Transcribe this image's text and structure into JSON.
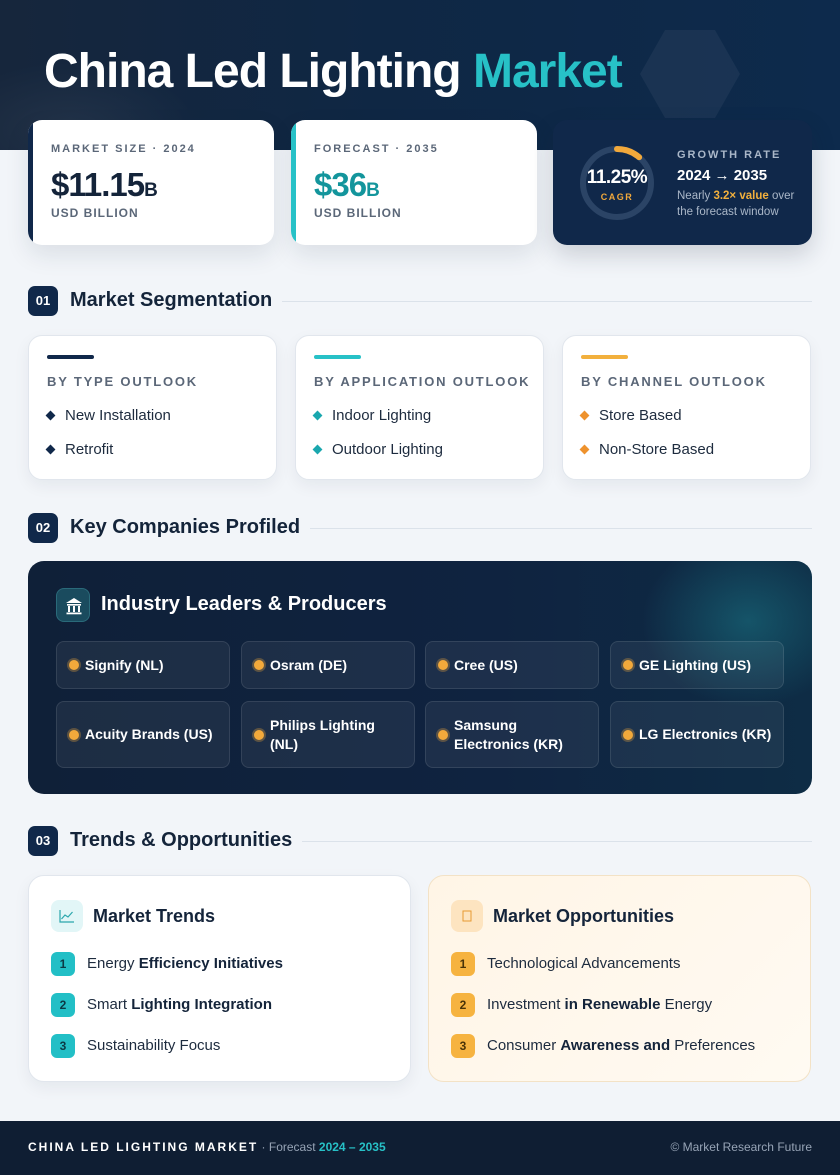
{
  "hero": {
    "title_main": "China Led Lighting",
    "title_accent": "Market"
  },
  "stats": {
    "market_size": {
      "label": "MARKET SIZE · 2024",
      "value": "$11.15",
      "unit": "B",
      "sub": "USD BILLION",
      "accent_color": "#10284a"
    },
    "forecast": {
      "label": "FORECAST · 2035",
      "value": "$36",
      "unit": "B",
      "sub": "USD BILLION",
      "accent_color": "#27c1c7",
      "value_color": "#13959c"
    },
    "growth": {
      "ring_value": "11.25%",
      "ring_caption": "CAGR",
      "ring_fill_fraction": 0.1125,
      "label": "GROWTH RATE",
      "range": "2024 → 2035",
      "note_pre": "Nearly",
      "note_highlight": "3.2× value",
      "note_post": "over the forecast window"
    }
  },
  "sections": {
    "s1": {
      "num": "01",
      "title": "Market Segmentation"
    },
    "s2": {
      "num": "02",
      "title": "Key Companies Profiled"
    },
    "s3": {
      "num": "03",
      "title": "Trends & Opportunities"
    }
  },
  "segmentation": [
    {
      "heading": "BY TYPE OUTLOOK",
      "color": "#10284a",
      "items": [
        "New Installation",
        "Retrofit"
      ]
    },
    {
      "heading": "BY APPLICATION OUTLOOK",
      "color": "#27c1c7",
      "items": [
        "Indoor Lighting",
        "Outdoor Lighting"
      ]
    },
    {
      "heading": "BY CHANNEL OUTLOOK",
      "color": "#f2b03d",
      "items": [
        "Store Based",
        "Non-Store Based"
      ]
    }
  ],
  "companies": {
    "title": "Industry Leaders & Producers",
    "icon": "institution-icon",
    "list": [
      "Signify (NL)",
      "Osram (DE)",
      "Cree (US)",
      "GE Lighting (US)",
      "Acuity Brands (US)",
      "Philips Lighting (NL)",
      "Samsung Electronics (KR)",
      "LG Electronics (KR)"
    ]
  },
  "trends": {
    "title": "Market Trends",
    "icon": "line-chart-icon",
    "items": [
      {
        "num": "1",
        "pre": "Energy ",
        "bold": "Efficiency Initiatives",
        "post": ""
      },
      {
        "num": "2",
        "pre": "Smart ",
        "bold": "Lighting Integration",
        "post": ""
      },
      {
        "num": "3",
        "pre": "Sustainability Focus",
        "bold": "",
        "post": ""
      }
    ]
  },
  "opportunities": {
    "title": "Market Opportunities",
    "icon": "lightbulb-icon",
    "items": [
      {
        "num": "1",
        "pre": "Technological Advancements",
        "bold": "",
        "post": ""
      },
      {
        "num": "2",
        "pre": "Investment ",
        "bold": "in Renewable",
        "post": " Energy"
      },
      {
        "num": "3",
        "pre": "Consumer ",
        "bold": "Awareness and",
        "post": " Preferences"
      }
    ]
  },
  "footer": {
    "brand": "CHINA LED LIGHTING MARKET",
    "sep": " · Forecast ",
    "years": "2024 – 2035",
    "copyright": "© Market Research Future"
  }
}
